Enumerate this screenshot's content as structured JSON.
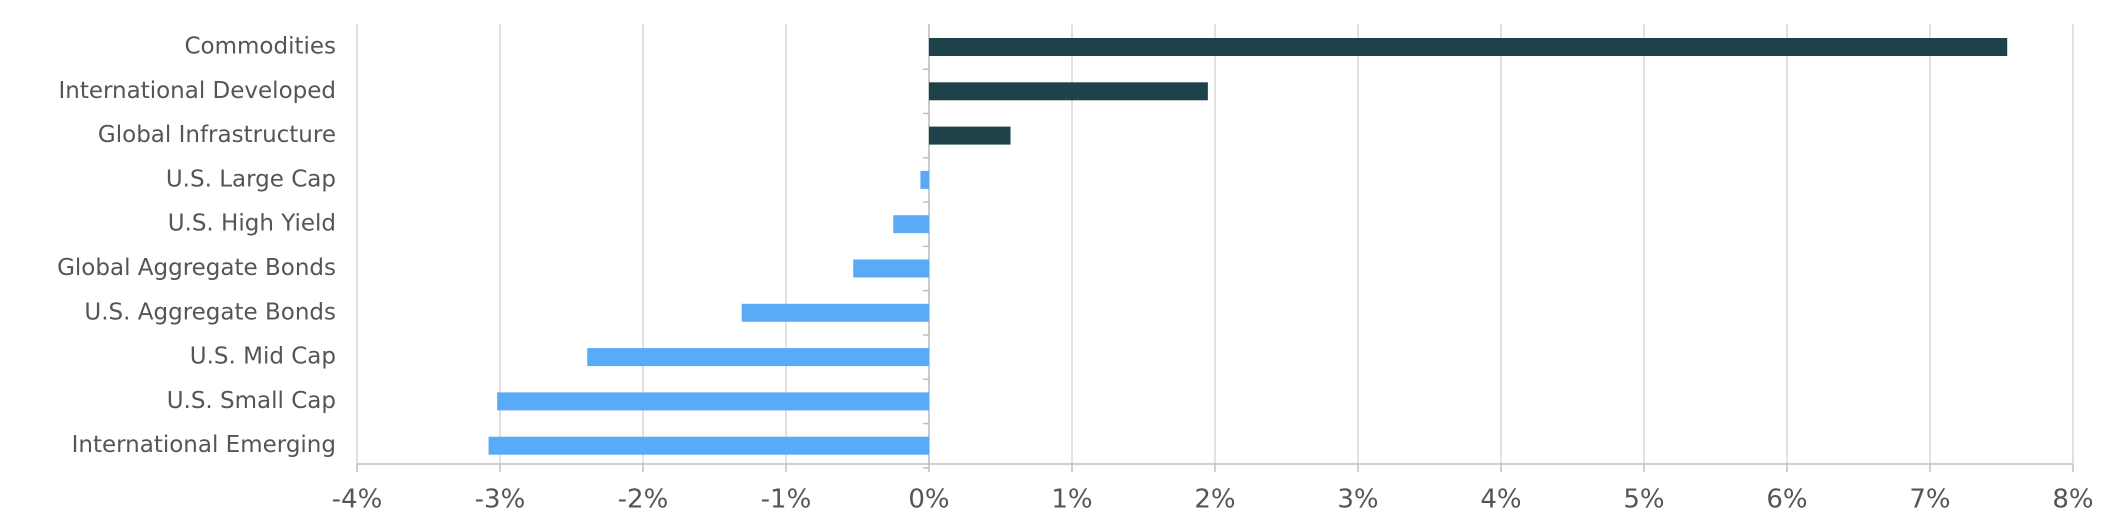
{
  "chart_data": {
    "type": "barh",
    "categories": [
      "Commodities",
      "International Developed",
      "Global Infrastructure",
      "U.S. Large Cap",
      "U.S. High Yield",
      "Global Aggregate Bonds",
      "U.S. Aggregate Bonds",
      "U.S. Mid Cap",
      "U.S. Small Cap",
      "International Emerging"
    ],
    "values": [
      7.54,
      1.95,
      0.57,
      -0.06,
      -0.25,
      -0.53,
      -1.31,
      -2.39,
      -3.02,
      -3.08
    ],
    "positive_color": "#1d4249",
    "negative_color": "#5aabf7",
    "xlim": [
      -4,
      8
    ],
    "xticks": [
      {
        "value": -4,
        "label": "-4%"
      },
      {
        "value": -3,
        "label": "-3%"
      },
      {
        "value": -2,
        "label": "-2%"
      },
      {
        "value": -1,
        "label": "-1%"
      },
      {
        "value": 0,
        "label": "0%"
      },
      {
        "value": 1,
        "label": "1%"
      },
      {
        "value": 2,
        "label": "2%"
      },
      {
        "value": 3,
        "label": "3%"
      },
      {
        "value": 4,
        "label": "4%"
      },
      {
        "value": 5,
        "label": "5%"
      },
      {
        "value": 6,
        "label": "6%"
      },
      {
        "value": 7,
        "label": "7%"
      },
      {
        "value": 8,
        "label": "8%"
      }
    ],
    "grid": true
  }
}
